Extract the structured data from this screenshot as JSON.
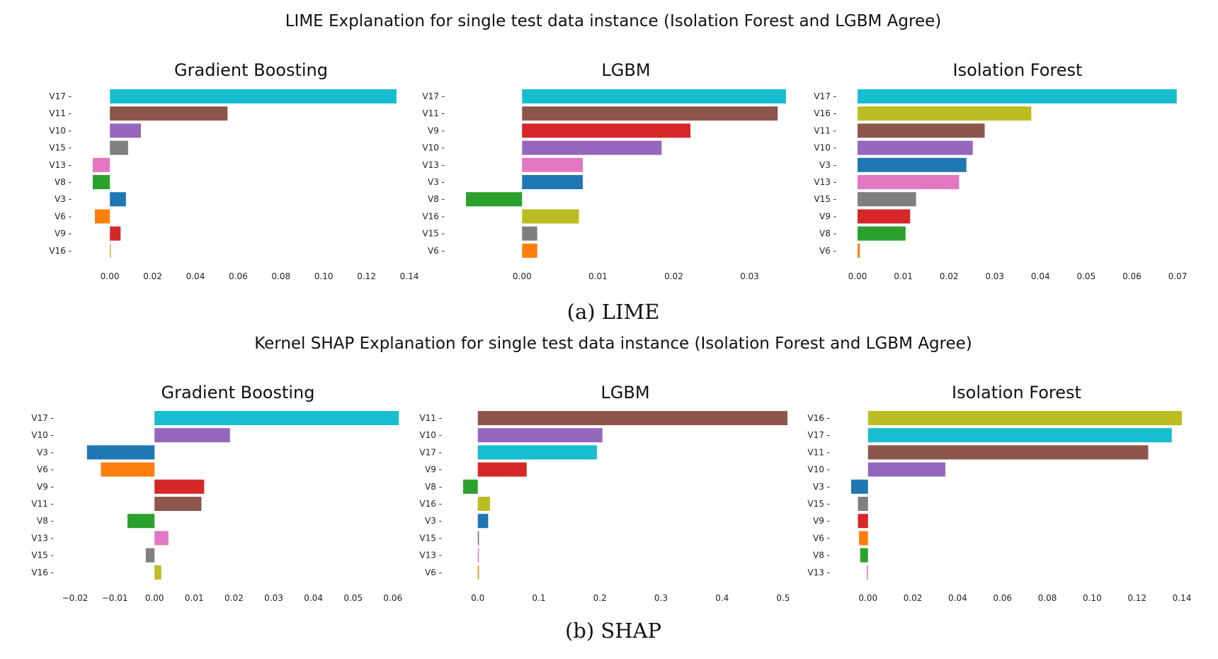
{
  "figure": {
    "caption_a": "(a) LIME",
    "caption_b": "(b) SHAP"
  },
  "chart_data": [
    {
      "type": "bar",
      "orientation": "horizontal",
      "group": "lime",
      "suptitle": "LIME Explanation for single test data instance (Isolation Forest and LGBM Agree)",
      "title": "Gradient Boosting",
      "categories": [
        "V17",
        "V11",
        "V10",
        "V15",
        "V13",
        "V8",
        "V3",
        "V6",
        "V9",
        "V16"
      ],
      "values": [
        0.134,
        0.055,
        0.0145,
        0.0085,
        -0.008,
        -0.008,
        0.0075,
        -0.007,
        0.005,
        0.0005
      ],
      "colors": [
        "#17becf",
        "#8c564b",
        "#9467bd",
        "#7f7f7f",
        "#e377c2",
        "#2ca02c",
        "#1f77b4",
        "#ff7f0e",
        "#d62728",
        "#bcbd22"
      ],
      "xlim": [
        -0.008,
        0.14
      ],
      "xticks": [
        0.0,
        0.02,
        0.04,
        0.06,
        0.08,
        0.1,
        0.12,
        0.14
      ],
      "xtick_labels": [
        "0.00",
        "0.02",
        "0.04",
        "0.06",
        "0.08",
        "0.10",
        "0.12",
        "0.14"
      ]
    },
    {
      "type": "bar",
      "orientation": "horizontal",
      "group": "lime",
      "title": "LGBM",
      "categories": [
        "V17",
        "V11",
        "V9",
        "V10",
        "V13",
        "V3",
        "V8",
        "V16",
        "V15",
        "V6"
      ],
      "values": [
        0.0348,
        0.0337,
        0.0222,
        0.0184,
        0.008,
        0.008,
        -0.0074,
        0.0075,
        0.002,
        0.002
      ],
      "colors": [
        "#17becf",
        "#8c564b",
        "#d62728",
        "#9467bd",
        "#e377c2",
        "#1f77b4",
        "#2ca02c",
        "#bcbd22",
        "#7f7f7f",
        "#ff7f0e"
      ],
      "xlim": [
        -0.0074,
        0.0348
      ],
      "xticks": [
        0.0,
        0.01,
        0.02,
        0.03
      ],
      "xtick_labels": [
        "0.00",
        "0.01",
        "0.02",
        "0.03"
      ]
    },
    {
      "type": "bar",
      "orientation": "horizontal",
      "group": "lime",
      "title": "Isolation Forest",
      "categories": [
        "V17",
        "V16",
        "V11",
        "V10",
        "V3",
        "V13",
        "V15",
        "V9",
        "V8",
        "V6"
      ],
      "values": [
        0.0698,
        0.038,
        0.0278,
        0.0252,
        0.0238,
        0.0222,
        0.0128,
        0.0115,
        0.0105,
        0.0005
      ],
      "colors": [
        "#17becf",
        "#bcbd22",
        "#8c564b",
        "#9467bd",
        "#1f77b4",
        "#e377c2",
        "#7f7f7f",
        "#d62728",
        "#2ca02c",
        "#ff7f0e"
      ],
      "xlim": [
        0.0,
        0.07
      ],
      "xticks": [
        0.0,
        0.01,
        0.02,
        0.03,
        0.04,
        0.05,
        0.06,
        0.07
      ],
      "xtick_labels": [
        "0.00",
        "0.01",
        "0.02",
        "0.03",
        "0.04",
        "0.05",
        "0.06",
        "0.07"
      ]
    },
    {
      "type": "bar",
      "orientation": "horizontal",
      "group": "shap",
      "suptitle": "Kernel SHAP Explanation for single test data instance (Isolation Forest and LGBM Agree)",
      "title": "Gradient Boosting",
      "categories": [
        "V17",
        "V10",
        "V3",
        "V6",
        "V9",
        "V11",
        "V8",
        "V13",
        "V15",
        "V16"
      ],
      "values": [
        0.0615,
        0.019,
        -0.017,
        -0.0135,
        0.0125,
        0.0118,
        -0.0068,
        0.0035,
        -0.0022,
        0.0017
      ],
      "colors": [
        "#17becf",
        "#9467bd",
        "#1f77b4",
        "#ff7f0e",
        "#d62728",
        "#8c564b",
        "#2ca02c",
        "#e377c2",
        "#7f7f7f",
        "#bcbd22"
      ],
      "xlim": [
        -0.02,
        0.062
      ],
      "xticks": [
        -0.02,
        -0.01,
        0.0,
        0.01,
        0.02,
        0.03,
        0.04,
        0.05,
        0.06
      ],
      "xtick_labels": [
        "−0.02",
        "−0.01",
        "0.00",
        "0.01",
        "0.02",
        "0.03",
        "0.04",
        "0.05",
        "0.06"
      ]
    },
    {
      "type": "bar",
      "orientation": "horizontal",
      "group": "shap",
      "title": "LGBM",
      "categories": [
        "V11",
        "V10",
        "V17",
        "V9",
        "V8",
        "V16",
        "V3",
        "V15",
        "V13",
        "V6"
      ],
      "values": [
        0.507,
        0.204,
        0.195,
        0.08,
        -0.024,
        0.02,
        0.017,
        0.002,
        0.001,
        0.001
      ],
      "colors": [
        "#8c564b",
        "#9467bd",
        "#17becf",
        "#d62728",
        "#2ca02c",
        "#bcbd22",
        "#1f77b4",
        "#7f7f7f",
        "#e377c2",
        "#ff7f0e"
      ],
      "xlim": [
        -0.024,
        0.507
      ],
      "xticks": [
        0.0,
        0.1,
        0.2,
        0.3,
        0.4,
        0.5
      ],
      "xtick_labels": [
        "0.0",
        "0.1",
        "0.2",
        "0.3",
        "0.4",
        "0.5"
      ]
    },
    {
      "type": "bar",
      "orientation": "horizontal",
      "group": "shap",
      "title": "Isolation Forest",
      "categories": [
        "V16",
        "V17",
        "V11",
        "V10",
        "V3",
        "V15",
        "V9",
        "V6",
        "V8",
        "V13"
      ],
      "values": [
        0.14,
        0.1355,
        0.125,
        0.0345,
        -0.0075,
        -0.0045,
        -0.0045,
        -0.004,
        -0.0035,
        -0.0005
      ],
      "colors": [
        "#bcbd22",
        "#17becf",
        "#8c564b",
        "#9467bd",
        "#1f77b4",
        "#7f7f7f",
        "#d62728",
        "#ff7f0e",
        "#2ca02c",
        "#e377c2"
      ],
      "xlim": [
        -0.0075,
        0.14
      ],
      "xticks": [
        0.0,
        0.02,
        0.04,
        0.06,
        0.08,
        0.1,
        0.12,
        0.14
      ],
      "xtick_labels": [
        "0.00",
        "0.02",
        "0.04",
        "0.06",
        "0.08",
        "0.10",
        "0.12",
        "0.14"
      ]
    }
  ]
}
